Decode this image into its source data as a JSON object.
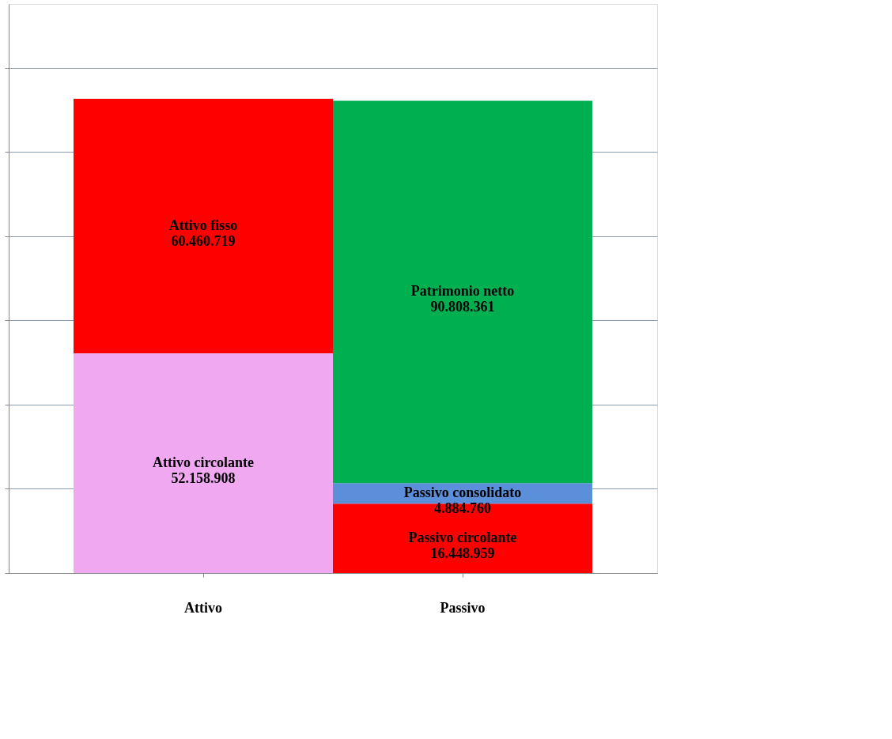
{
  "chart_data": {
    "type": "bar",
    "stacked": true,
    "categories": [
      "Attivo",
      "Passivo"
    ],
    "series": [
      {
        "name": "Attivo circolante",
        "color": "#f0a8f0",
        "values": [
          52158908,
          null
        ],
        "value_labels": [
          "52.158.908",
          null
        ]
      },
      {
        "name": "Passivo circolante",
        "color": "#ff0000",
        "values": [
          null,
          16448959
        ],
        "value_labels": [
          null,
          "16.448.959"
        ]
      },
      {
        "name": "Passivo consolidato",
        "color": "#5b8fd9",
        "values": [
          null,
          4884760
        ],
        "value_labels": [
          null,
          "4.884.760"
        ]
      },
      {
        "name": "Attivo fisso",
        "color": "#ff0000",
        "values": [
          60460719,
          null
        ],
        "value_labels": [
          "60.460.719",
          null
        ]
      },
      {
        "name": "Patrimonio netto",
        "color": "#00b050",
        "values": [
          null,
          90808361
        ],
        "value_labels": [
          null,
          "90.808.361"
        ]
      }
    ],
    "grid": "y",
    "tick_labels": "x"
  }
}
